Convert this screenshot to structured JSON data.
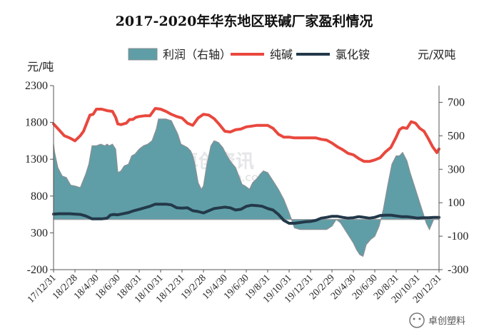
{
  "chart_data": {
    "type": "area",
    "title": "2017-2020年华东地区联碱厂家盈利情况",
    "ylabel_left": "元/吨",
    "ylabel_right": "元/双吨",
    "left_axis": {
      "ylim": [
        -200,
        2300
      ],
      "ticks": [
        "2300",
        "1800",
        "1300",
        "800",
        "300",
        "-200"
      ]
    },
    "right_axis": {
      "ylim": [
        -300,
        800
      ],
      "ticks": [
        "700",
        "500",
        "300",
        "100",
        "-100",
        "-300"
      ]
    },
    "x_tick_labels": [
      "17/12/31",
      "18/2/28",
      "18/4/30",
      "18/6/30",
      "18/8/31",
      "18/10/31",
      "18/12/31",
      "19/2/28",
      "19/4/30",
      "19/6/30",
      "19/8/31",
      "19/10/31",
      "19/12/31",
      "20/2/29",
      "20/4/30",
      "20/6/30",
      "20/8/31",
      "20/10/31",
      "20/12/31"
    ],
    "x_range_months": [
      0,
      36
    ],
    "legend": [
      "利润（右轴）",
      "纯碱",
      "氯化铵"
    ],
    "colors": {
      "profit_fill": "#5f9ea7",
      "profit_edge": "#8a8f94",
      "soda": "#e9483e",
      "nh4cl": "#23394a"
    },
    "series": [
      {
        "name": "利润（右轴）",
        "axis": "right",
        "kind": "area",
        "x": [
          0,
          0.1,
          0.4,
          0.8,
          1.2,
          1.6,
          2.0,
          2.5,
          3.0,
          3.3,
          3.6,
          4.0,
          4.4,
          4.8,
          5.0,
          5.2,
          5.5,
          5.8,
          6.0,
          6.3,
          6.6,
          7.0,
          7.3,
          7.6,
          8.0,
          8.4,
          8.8,
          9.2,
          9.6,
          9.8,
          10.0,
          10.5,
          11.0,
          11.3,
          11.6,
          11.9,
          12.2,
          12.5,
          12.8,
          13.0,
          13.2,
          13.5,
          13.8,
          14.0,
          14.3,
          14.7,
          15.0,
          15.4,
          15.8,
          16.2,
          16.6,
          17.0,
          17.3,
          17.6,
          17.9,
          18.3,
          18.6,
          19.0,
          19.3,
          19.6,
          20.0,
          20.2,
          20.4,
          20.6,
          21.0,
          21.5,
          22.0,
          22.5,
          23.0,
          23.5,
          24.0,
          24.5,
          25.0,
          25.5,
          26.0,
          26.4,
          26.8,
          27.2,
          27.6,
          28.0,
          28.3,
          28.6,
          28.9,
          29.2,
          29.6,
          30.0,
          30.4,
          30.8,
          31.2,
          31.6,
          32.0,
          32.3,
          32.6,
          33.0,
          33.3,
          33.6,
          33.9,
          34.2,
          34.5,
          34.8,
          35.1,
          35.5,
          35.8,
          36.0
        ],
        "values": [
          450,
          400,
          310,
          260,
          250,
          205,
          200,
          190,
          270,
          330,
          440,
          440,
          450,
          440,
          450,
          440,
          450,
          420,
          280,
          290,
          320,
          330,
          380,
          390,
          420,
          440,
          450,
          470,
          540,
          600,
          600,
          600,
          590,
          550,
          510,
          450,
          440,
          430,
          410,
          380,
          330,
          220,
          180,
          200,
          320,
          440,
          470,
          460,
          430,
          380,
          340,
          310,
          260,
          210,
          200,
          180,
          220,
          245,
          270,
          290,
          280,
          260,
          240,
          220,
          180,
          120,
          40,
          -50,
          -60,
          -60,
          -60,
          -60,
          -60,
          -60,
          -40,
          0,
          -20,
          -60,
          -100,
          -140,
          -180,
          -210,
          -220,
          -150,
          -120,
          -100,
          -40,
          60,
          200,
          330,
          380,
          380,
          400,
          350,
          280,
          220,
          160,
          100,
          40,
          -20,
          -60,
          0,
          0,
          0
        ]
      },
      {
        "name": "纯碱",
        "axis": "left",
        "kind": "line",
        "x": [
          0,
          0.5,
          1.0,
          1.5,
          2.0,
          2.5,
          2.8,
          3.1,
          3.4,
          3.7,
          4.0,
          4.5,
          5.0,
          5.5,
          5.8,
          6.0,
          6.3,
          6.8,
          7.1,
          7.4,
          7.7,
          8.0,
          8.5,
          9.0,
          9.5,
          10.0,
          10.5,
          11.0,
          11.5,
          12.0,
          12.5,
          13.0,
          13.5,
          14.0,
          14.5,
          15.0,
          15.5,
          16.0,
          16.5,
          17.0,
          17.5,
          18.0,
          18.5,
          19.0,
          19.5,
          20.0,
          20.5,
          21.0,
          21.5,
          22.0,
          22.5,
          23.0,
          23.5,
          24.0,
          24.5,
          25.0,
          25.5,
          26.0,
          26.5,
          27.0,
          27.5,
          28.0,
          28.5,
          29.0,
          29.5,
          30.0,
          30.5,
          31.0,
          31.5,
          32.0,
          32.3,
          32.6,
          33.0,
          33.4,
          33.8,
          34.2,
          34.6,
          35.0,
          35.4,
          35.8,
          36.0
        ],
        "values": [
          1780,
          1700,
          1620,
          1590,
          1550,
          1620,
          1680,
          1790,
          1900,
          1910,
          1980,
          1980,
          1960,
          1950,
          1870,
          1780,
          1770,
          1790,
          1840,
          1840,
          1870,
          1880,
          1890,
          1890,
          1990,
          1980,
          1950,
          1910,
          1880,
          1860,
          1790,
          1760,
          1860,
          1910,
          1900,
          1850,
          1770,
          1680,
          1670,
          1700,
          1710,
          1740,
          1750,
          1760,
          1760,
          1760,
          1720,
          1640,
          1600,
          1600,
          1590,
          1590,
          1590,
          1590,
          1590,
          1570,
          1560,
          1520,
          1470,
          1430,
          1380,
          1360,
          1310,
          1270,
          1270,
          1290,
          1320,
          1400,
          1460,
          1600,
          1700,
          1730,
          1720,
          1810,
          1790,
          1720,
          1680,
          1580,
          1470,
          1390,
          1440
        ]
      },
      {
        "name": "氯化铵",
        "axis": "left",
        "kind": "line",
        "x": [
          0,
          0.5,
          1.0,
          1.5,
          2.0,
          2.5,
          3.0,
          3.3,
          3.6,
          4.0,
          4.5,
          5.0,
          5.3,
          5.6,
          6.0,
          6.5,
          7.0,
          7.5,
          8.0,
          8.5,
          9.0,
          9.5,
          10.0,
          10.5,
          11.0,
          11.5,
          12.0,
          12.5,
          13.0,
          13.5,
          14.0,
          14.5,
          15.0,
          15.5,
          16.0,
          16.5,
          17.0,
          17.5,
          18.0,
          18.5,
          19.0,
          19.5,
          20.0,
          20.5,
          21.0,
          21.5,
          22.0,
          22.5,
          23.0,
          23.5,
          24.0,
          24.5,
          25.0,
          25.5,
          26.0,
          26.5,
          27.0,
          27.5,
          28.0,
          28.5,
          29.0,
          29.5,
          30.0,
          30.5,
          31.0,
          31.5,
          32.0,
          32.5,
          33.0,
          33.5,
          34.0,
          34.5,
          35.0,
          35.5,
          36.0
        ],
        "values": [
          555,
          560,
          560,
          560,
          555,
          550,
          530,
          510,
          490,
          490,
          490,
          500,
          540,
          550,
          545,
          560,
          575,
          600,
          620,
          640,
          660,
          690,
          690,
          690,
          680,
          640,
          635,
          640,
          600,
          590,
          570,
          600,
          630,
          640,
          650,
          640,
          610,
          620,
          660,
          675,
          670,
          660,
          630,
          610,
          550,
          470,
          430,
          430,
          440,
          450,
          455,
          470,
          500,
          510,
          525,
          525,
          510,
          500,
          505,
          520,
          510,
          500,
          510,
          535,
          540,
          540,
          530,
          520,
          520,
          510,
          500,
          505,
          505,
          510,
          510
        ]
      }
    ]
  },
  "watermark": {
    "bg_text": "卓创资讯",
    "bg_sub": "SCI99.COM",
    "logo_text": "卓创塑料"
  }
}
